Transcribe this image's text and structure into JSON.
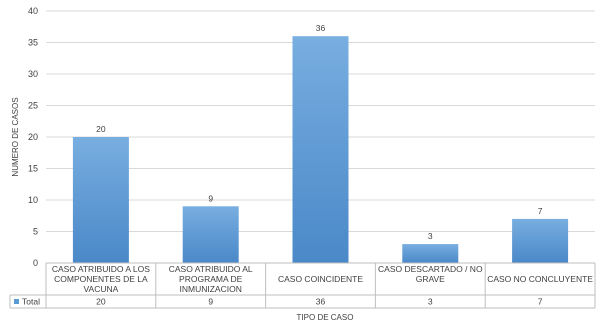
{
  "chart_data": {
    "type": "bar",
    "categories": [
      [
        "CASO ATRIBUIDO A LOS",
        "COMPONENTES DE LA",
        "VACUNA"
      ],
      [
        "CASO ATRIBUIDO AL",
        "PROGRAMA DE",
        "INMUNIZACION"
      ],
      [
        "CASO COINCIDENTE"
      ],
      [
        "CASO DESCARTADO / NO",
        "GRAVE"
      ],
      [
        "CASO NO CONCLUYENTE"
      ]
    ],
    "series": [
      {
        "name": "Total",
        "values": [
          20,
          9,
          36,
          3,
          7
        ],
        "color": "#5b9bd5"
      }
    ],
    "xlabel": "TIPO DE CASO",
    "ylabel": "NUMERO DE CASOS",
    "ylim": [
      0,
      40
    ],
    "yticks": [
      0,
      5,
      10,
      15,
      20,
      25,
      30,
      35,
      40
    ],
    "grid": true,
    "data_table": true
  }
}
